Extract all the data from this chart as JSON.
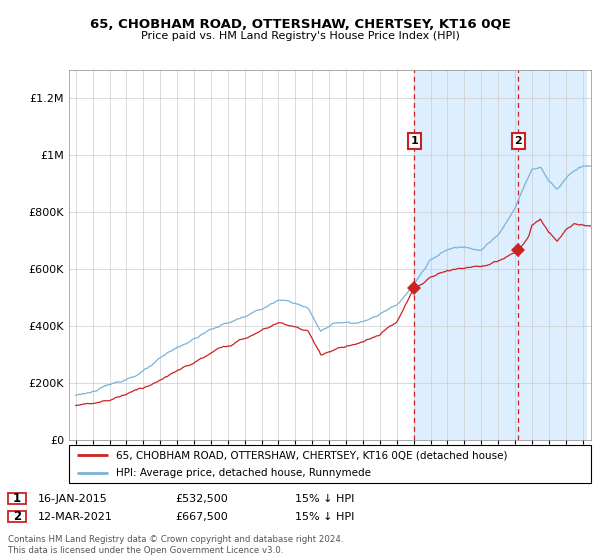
{
  "title1": "65, CHOBHAM ROAD, OTTERSHAW, CHERTSEY, KT16 0QE",
  "title2": "Price paid vs. HM Land Registry's House Price Index (HPI)",
  "legend1": "65, CHOBHAM ROAD, OTTERSHAW, CHERTSEY, KT16 0QE (detached house)",
  "legend2": "HPI: Average price, detached house, Runnymede",
  "footer": "Contains HM Land Registry data © Crown copyright and database right 2024.\nThis data is licensed under the Open Government Licence v3.0.",
  "hpi_color": "#7ab3d9",
  "price_color": "#cc2222",
  "shaded_color": "#ddeeff",
  "annotation_color": "#cc2222",
  "ylim": [
    0,
    1300000
  ],
  "yticks": [
    0,
    200000,
    400000,
    600000,
    800000,
    1000000,
    1200000
  ],
  "sale1_year": 2015.04,
  "sale1_price": 532500,
  "sale2_year": 2021.2,
  "sale2_price": 667500,
  "date1": "16-JAN-2015",
  "date2": "12-MAR-2021",
  "price1_str": "£532,500",
  "price2_str": "£667,500",
  "pct1_str": "15% ↓ HPI",
  "pct2_str": "15% ↓ HPI"
}
